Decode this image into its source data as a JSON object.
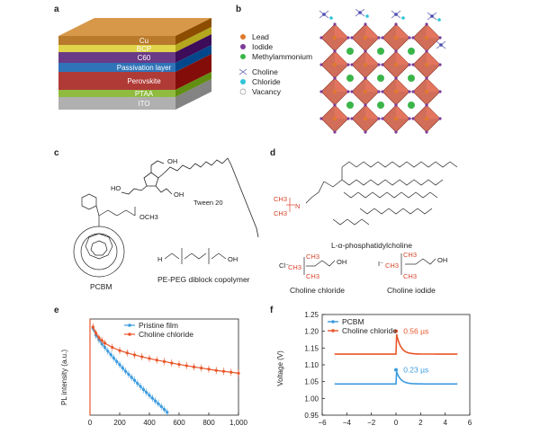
{
  "panels": {
    "a": {
      "label": "a",
      "layers": [
        {
          "name": "Cu",
          "color": "#b97a2b"
        },
        {
          "name": "BCP",
          "color": "#e0d44a"
        },
        {
          "name": "C60",
          "color": "#6a3a86"
        },
        {
          "name": "Passivation layer",
          "color": "#2f74b8"
        },
        {
          "name": "Perovskite",
          "color": "#b03a36"
        },
        {
          "name": "PTAA",
          "color": "#8fbc3f"
        },
        {
          "name": "ITO",
          "color": "#b0b0b0"
        }
      ]
    },
    "b": {
      "label": "b",
      "legend": [
        {
          "name": "Lead",
          "color": "#e07a2e"
        },
        {
          "name": "Iodide",
          "color": "#7d3c98"
        },
        {
          "name": "Methylammonium",
          "color": "#3bb54a"
        },
        {
          "name": "Choline",
          "color": "#8080c0"
        },
        {
          "name": "Chloride",
          "color": "#2ec4d6"
        },
        {
          "name": "Vacancy",
          "color": "#ffffff"
        }
      ],
      "octahedron_color": "#c8553d"
    },
    "c": {
      "label": "c",
      "molecules": {
        "tween": "Tween 20",
        "pcbm": "PCBM",
        "pcbm_group": "OCH3",
        "peg": "PE-PEG diblock copolymer",
        "tween_groups": [
          "HO",
          "OH",
          "OH"
        ]
      }
    },
    "d": {
      "label": "d",
      "molecules": {
        "lecithin": "L-α-phosphatidylcholine",
        "choline_chloride": "Choline chloride",
        "choline_iodide": "Choline iodide",
        "cl_ion": "Cl⁻",
        "i_ion": "I⁻",
        "methyl": "CH3",
        "hydroxyl": "OH",
        "nitrogen": "N"
      }
    },
    "e": {
      "label": "e",
      "chart_data": {
        "type": "scatter",
        "xlabel": "",
        "ylabel": "PL intensity (a.u.)",
        "xlim": [
          0,
          1000
        ],
        "x_ticks": [
          "0",
          "200",
          "400",
          "600",
          "800",
          "1,000"
        ],
        "log_y": true,
        "series": [
          {
            "name": "Pristine film",
            "color": "#3b9be0",
            "x": [
              20,
              40,
              60,
              80,
              100,
              120,
              140,
              160,
              180,
              200,
              220,
              240,
              260,
              280,
              300,
              320,
              340,
              360,
              380,
              400,
              420,
              440,
              460,
              480,
              500,
              520
            ],
            "y": [
              0.55,
              0.35,
              0.26,
              0.2,
              0.16,
              0.125,
              0.1,
              0.08,
              0.064,
              0.052,
              0.042,
              0.034,
              0.028,
              0.023,
              0.019,
              0.0155,
              0.0128,
              0.0105,
              0.0087,
              0.0072,
              0.006,
              0.005,
              0.0042,
              0.0035,
              0.0029,
              0.0024
            ]
          },
          {
            "name": "Choline chloride",
            "color": "#e8562a",
            "x": [
              20,
              40,
              60,
              80,
              100,
              150,
              200,
              250,
              300,
              350,
              400,
              450,
              500,
              550,
              600,
              650,
              700,
              750,
              800,
              850,
              900,
              950,
              1000
            ],
            "y": [
              0.6,
              0.4,
              0.3,
              0.25,
              0.21,
              0.16,
              0.13,
              0.112,
              0.098,
              0.087,
              0.078,
              0.07,
              0.064,
              0.058,
              0.053,
              0.049,
              0.045,
              0.042,
              0.039,
              0.036,
              0.034,
              0.032,
              0.03
            ]
          }
        ]
      }
    },
    "f": {
      "label": "f",
      "chart_data": {
        "type": "line",
        "xlabel": "",
        "ylabel": "Voltage (V)",
        "xlim": [
          -6,
          6
        ],
        "ylim": [
          0.95,
          1.25
        ],
        "x_ticks": [
          "−6",
          "−4",
          "−2",
          "0",
          "2",
          "4",
          "6"
        ],
        "y_ticks": [
          "0.95",
          "1.00",
          "1.05",
          "1.10",
          "1.15",
          "1.20",
          "1.25"
        ],
        "series": [
          {
            "name": "PCBM",
            "color": "#3b9be0",
            "baseline": 1.043,
            "peak": 1.085,
            "annotation": "0.23 µs"
          },
          {
            "name": "Choline chloride",
            "color": "#e8562a",
            "baseline": 1.132,
            "peak": 1.2,
            "annotation": "0.56 µs"
          }
        ],
        "x_range": [
          -5,
          5
        ]
      }
    }
  }
}
